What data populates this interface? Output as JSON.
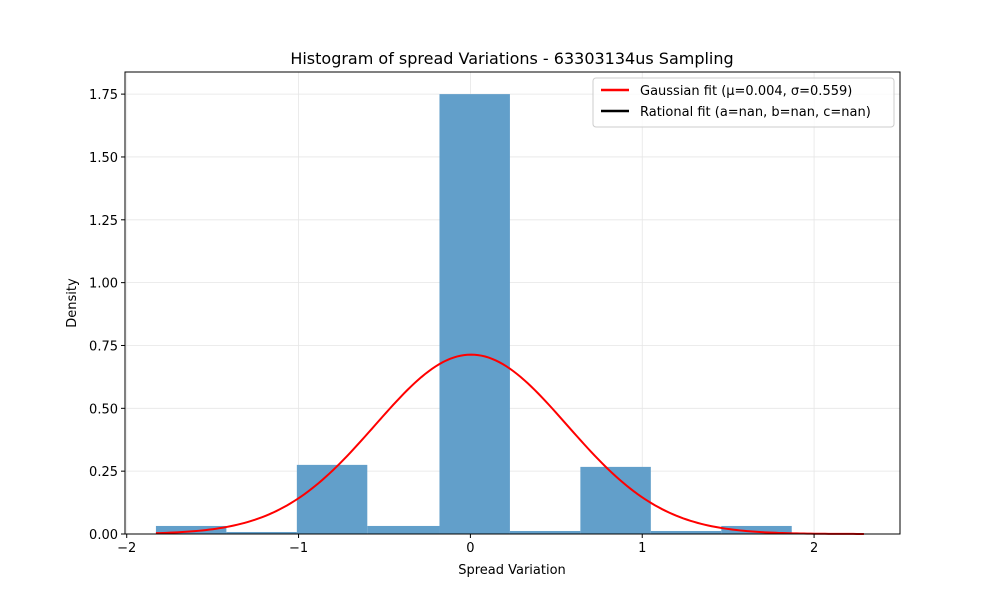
{
  "chart_data": {
    "type": "bar",
    "title": "Histogram of spread Variations - 63303134us Sampling",
    "xlabel": "Spread Variation",
    "ylabel": "Density",
    "xlim": [
      -2.01,
      2.5
    ],
    "ylim": [
      0,
      1.838
    ],
    "grid": true,
    "legend_position": "top-right",
    "bar_color": "#629fca",
    "bins": [
      {
        "x0": -1.83,
        "x1": -1.42,
        "value": 0.032
      },
      {
        "x0": -1.42,
        "x1": -1.01,
        "value": 0.008
      },
      {
        "x0": -1.01,
        "x1": -0.6,
        "value": 0.275
      },
      {
        "x0": -0.6,
        "x1": -0.18,
        "value": 0.032
      },
      {
        "x0": -0.18,
        "x1": 0.23,
        "value": 1.75
      },
      {
        "x0": 0.23,
        "x1": 0.64,
        "value": 0.012
      },
      {
        "x0": 0.64,
        "x1": 1.05,
        "value": 0.267
      },
      {
        "x0": 1.05,
        "x1": 1.46,
        "value": 0.012
      },
      {
        "x0": 1.46,
        "x1": 1.87,
        "value": 0.032
      }
    ],
    "gaussian": {
      "mu": 0.004,
      "sigma": 0.559,
      "x_start": -1.83,
      "x_end": 2.29,
      "color": "#ff0000"
    },
    "xticks": [
      {
        "value": -2,
        "label": "−2"
      },
      {
        "value": -1,
        "label": "−1"
      },
      {
        "value": 0,
        "label": "0"
      },
      {
        "value": 1,
        "label": "1"
      },
      {
        "value": 2,
        "label": "2"
      }
    ],
    "yticks": [
      {
        "value": 0,
        "label": "0.00"
      },
      {
        "value": 0.25,
        "label": "0.25"
      },
      {
        "value": 0.5,
        "label": "0.50"
      },
      {
        "value": 0.75,
        "label": "0.75"
      },
      {
        "value": 1.0,
        "label": "1.00"
      },
      {
        "value": 1.25,
        "label": "1.25"
      },
      {
        "value": 1.5,
        "label": "1.50"
      },
      {
        "value": 1.75,
        "label": "1.75"
      }
    ],
    "legend": [
      {
        "label": "Gaussian fit (μ=0.004, σ=0.559)",
        "color": "#ff0000"
      },
      {
        "label": "Rational fit (a=nan, b=nan, c=nan)",
        "color": "#000000"
      }
    ]
  }
}
